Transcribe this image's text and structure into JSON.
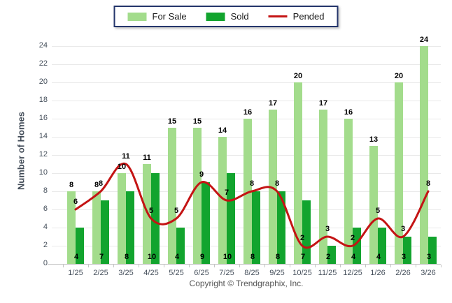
{
  "chart_data": {
    "type": "bar",
    "title": "",
    "ylabel": "Number of Homes",
    "xlabel": "",
    "ylim": [
      0,
      24
    ],
    "ytick_step": 2,
    "grid": true,
    "legend_position": "top-center",
    "categories": [
      "1/25",
      "2/25",
      "3/25",
      "4/25",
      "5/25",
      "6/25",
      "7/25",
      "8/25",
      "9/25",
      "10/25",
      "11/25",
      "12/25",
      "1/26",
      "2/26",
      "3/26"
    ],
    "series": [
      {
        "name": "For Sale",
        "type": "bar",
        "color": "#A3DC8C",
        "values": [
          8,
          8,
          10,
          11,
          15,
          15,
          14,
          16,
          17,
          20,
          17,
          16,
          13,
          20,
          24
        ]
      },
      {
        "name": "Sold",
        "type": "bar",
        "color": "#12A42E",
        "values": [
          4,
          7,
          8,
          10,
          4,
          9,
          10,
          8,
          8,
          7,
          2,
          4,
          4,
          3,
          3
        ]
      },
      {
        "name": "Pended",
        "type": "line",
        "color": "#C41414",
        "values": [
          6,
          8,
          11,
          5,
          5,
          9,
          7,
          8,
          8,
          2,
          3,
          2,
          5,
          3,
          8
        ]
      }
    ],
    "value_label_color": "#000000",
    "grid_color": "#E9E9E9"
  },
  "footer": {
    "copyright": "Copyright © Trendgraphix, Inc."
  }
}
